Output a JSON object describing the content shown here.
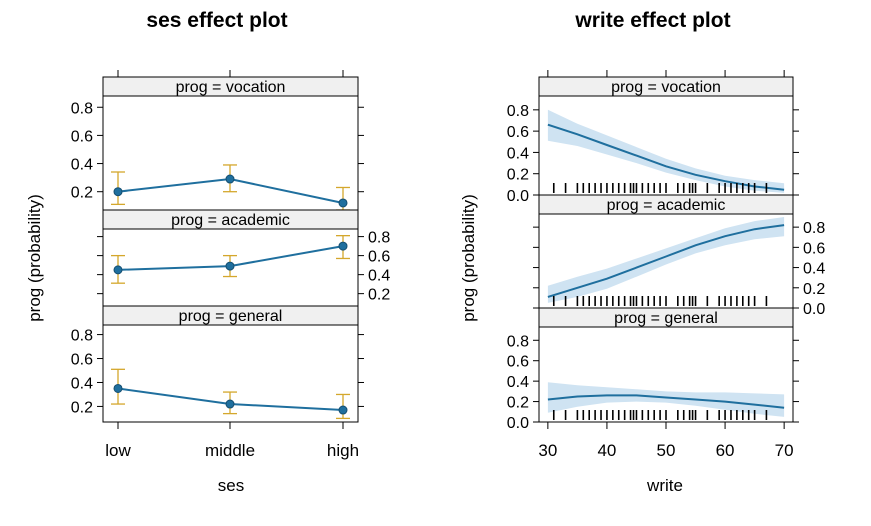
{
  "colors": {
    "line": "#1f6f9e",
    "point": "#1f6f9e",
    "errorbar": "#d4a72c",
    "band": "#cfe3f2",
    "strip": "#f0f0f0",
    "frame": "#000000",
    "rug": "#000000"
  },
  "chart_data": [
    {
      "type": "line",
      "title": "ses effect plot",
      "xlabel": "ses",
      "ylabel": "prog (probability)",
      "x_categories": [
        "low",
        "middle",
        "high"
      ],
      "ylim": [
        0.07,
        0.88
      ],
      "y_ticks": [
        0.2,
        0.4,
        0.6,
        0.8
      ],
      "y_tick_labels": [
        "0.2",
        "0.4",
        "0.6",
        "0.8"
      ],
      "panels": [
        {
          "strip": "prog = vocation",
          "y_axis_side": "left",
          "values": [
            0.2,
            0.29,
            0.12
          ],
          "lower": [
            0.11,
            0.2,
            0.07
          ],
          "upper": [
            0.34,
            0.39,
            0.23
          ]
        },
        {
          "strip": "prog = academic",
          "y_axis_side": "right",
          "values": [
            0.45,
            0.49,
            0.7
          ],
          "lower": [
            0.31,
            0.38,
            0.57
          ],
          "upper": [
            0.6,
            0.6,
            0.81
          ]
        },
        {
          "strip": "prog = general",
          "y_axis_side": "left",
          "values": [
            0.35,
            0.22,
            0.17
          ],
          "lower": [
            0.22,
            0.14,
            0.1
          ],
          "upper": [
            0.51,
            0.32,
            0.3
          ]
        }
      ]
    },
    {
      "type": "line",
      "title": "write effect plot",
      "xlabel": "write",
      "ylabel": "prog (probability)",
      "xlim": [
        28.5,
        71.5
      ],
      "x_ticks": [
        30,
        40,
        50,
        60,
        70
      ],
      "x_tick_labels": [
        "30",
        "40",
        "50",
        "60",
        "70"
      ],
      "ylim": [
        0.0,
        0.93
      ],
      "y_ticks": [
        0.0,
        0.2,
        0.4,
        0.6,
        0.8
      ],
      "y_tick_labels": [
        "0.0",
        "0.2",
        "0.4",
        "0.6",
        "0.8"
      ],
      "rug": [
        31,
        33,
        35,
        36,
        37,
        38,
        39,
        40,
        41,
        42,
        43,
        44,
        44.5,
        45,
        46,
        47,
        48,
        49,
        50,
        52,
        53,
        54,
        54.5,
        55,
        57,
        59,
        60,
        61,
        62,
        63,
        64,
        65,
        67
      ],
      "panels": [
        {
          "strip": "prog = vocation",
          "y_axis_side": "left",
          "x": [
            30,
            35,
            40,
            45,
            50,
            55,
            60,
            65,
            70
          ],
          "values": [
            0.66,
            0.57,
            0.47,
            0.37,
            0.27,
            0.19,
            0.13,
            0.08,
            0.05
          ],
          "lower": [
            0.51,
            0.46,
            0.38,
            0.3,
            0.21,
            0.14,
            0.08,
            0.04,
            0.02
          ],
          "upper": [
            0.8,
            0.67,
            0.56,
            0.45,
            0.34,
            0.25,
            0.18,
            0.14,
            0.11
          ]
        },
        {
          "strip": "prog = academic",
          "y_axis_side": "right",
          "x": [
            30,
            35,
            40,
            45,
            50,
            55,
            60,
            65,
            70
          ],
          "values": [
            0.11,
            0.2,
            0.29,
            0.4,
            0.51,
            0.62,
            0.71,
            0.78,
            0.82
          ],
          "lower": [
            0.05,
            0.11,
            0.19,
            0.31,
            0.43,
            0.54,
            0.62,
            0.68,
            0.71
          ],
          "upper": [
            0.22,
            0.31,
            0.39,
            0.49,
            0.59,
            0.69,
            0.79,
            0.86,
            0.9
          ]
        },
        {
          "strip": "prog = general",
          "y_axis_side": "left",
          "x": [
            30,
            35,
            40,
            45,
            50,
            55,
            60,
            65,
            70
          ],
          "values": [
            0.22,
            0.25,
            0.26,
            0.26,
            0.24,
            0.22,
            0.2,
            0.17,
            0.14
          ],
          "lower": [
            0.09,
            0.15,
            0.19,
            0.2,
            0.19,
            0.16,
            0.12,
            0.08,
            0.05
          ],
          "upper": [
            0.39,
            0.36,
            0.34,
            0.32,
            0.3,
            0.29,
            0.29,
            0.28,
            0.27
          ]
        }
      ]
    }
  ]
}
